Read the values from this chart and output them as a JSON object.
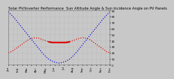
{
  "title": "Solar PV/Inverter Performance  Sun Altitude Angle & Sun Incidence Angle on PV Panels",
  "background_color": "#c8c8c8",
  "plot_bg_color": "#c8c8c8",
  "grid_color": "#aaaaaa",
  "blue_line_color": "#0000dd",
  "red_line_color": "#dd0000",
  "x_values": [
    0,
    1,
    2,
    3,
    4,
    5,
    6,
    7,
    8,
    9,
    10,
    11,
    12,
    13,
    14,
    15,
    16,
    17,
    18,
    19,
    20,
    21,
    22,
    23,
    24,
    25,
    26,
    27,
    28,
    29,
    30
  ],
  "blue_y": [
    88,
    82,
    76,
    69,
    62,
    55,
    48,
    41,
    34,
    27,
    20,
    14,
    9,
    6,
    4,
    3,
    4,
    6,
    9,
    14,
    20,
    27,
    34,
    41,
    48,
    55,
    62,
    69,
    76,
    82,
    88
  ],
  "red_y": [
    20,
    22,
    26,
    30,
    34,
    38,
    42,
    44,
    45,
    44,
    42,
    40,
    38,
    37,
    37,
    37,
    37,
    37,
    38,
    40,
    42,
    44,
    45,
    44,
    42,
    38,
    34,
    30,
    26,
    22,
    20
  ],
  "ylim": [
    0,
    90
  ],
  "xlim": [
    0,
    30
  ],
  "title_fontsize": 3.8,
  "tick_fontsize": 3.0,
  "line_width": 0.9,
  "yticks": [
    0,
    10,
    20,
    30,
    40,
    50,
    60,
    70,
    80,
    90
  ],
  "x_tick_labels": [
    "Jan",
    "",
    "Feb",
    "",
    "Mar",
    "",
    "Apr",
    "",
    "May",
    "",
    "Jun",
    "",
    "Jul",
    "",
    "Aug",
    "",
    "Sep",
    "",
    "Oct",
    "",
    "Nov",
    "",
    "Dec"
  ],
  "x_tick_positions": [
    0,
    1.36,
    2.73,
    4.09,
    5.45,
    6.82,
    8.18,
    9.55,
    10.91,
    12.27,
    13.64,
    15.0,
    16.36,
    17.73,
    19.09,
    20.45,
    21.82,
    23.18,
    24.55,
    25.91,
    27.27,
    28.64,
    30
  ]
}
